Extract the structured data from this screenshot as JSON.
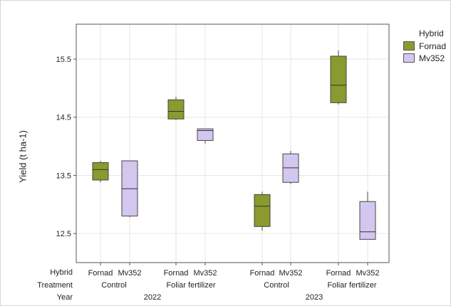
{
  "chart_data": {
    "type": "boxplot",
    "ylabel": "Yield (t ha-1)",
    "ylim": [
      12.0,
      16.1
    ],
    "yticks": [
      12.5,
      13.5,
      14.5,
      15.5
    ],
    "grid": true,
    "legend_placement": "top-right",
    "legend": {
      "title": "Hybrid",
      "entries": [
        {
          "name": "Fornad",
          "color": "#8a9a2e"
        },
        {
          "name": "Mv352",
          "color": "#d3c7f0"
        }
      ]
    },
    "row_labels": [
      "Hybrid",
      "Treatment",
      "Year"
    ],
    "years": [
      "2022",
      "2023"
    ],
    "treatments": [
      {
        "name": "Control",
        "year": "2022"
      },
      {
        "name": "Foliar fertilizer",
        "year": "2022"
      },
      {
        "name": "Control",
        "year": "2023"
      },
      {
        "name": "Foliar fertilizer",
        "year": "2023"
      }
    ],
    "boxes": [
      {
        "hybrid": "Fornad",
        "treatment": "Control",
        "year": "2022",
        "min": 13.38,
        "q1": 13.42,
        "median": 13.6,
        "q3": 13.72,
        "max": 13.75
      },
      {
        "hybrid": "Mv352",
        "treatment": "Control",
        "year": "2022",
        "min": 12.78,
        "q1": 12.8,
        "median": 13.27,
        "q3": 13.75,
        "max": 13.75
      },
      {
        "hybrid": "Fornad",
        "treatment": "Foliar fertilizer",
        "year": "2022",
        "min": 14.45,
        "q1": 14.47,
        "median": 14.6,
        "q3": 14.8,
        "max": 14.85
      },
      {
        "hybrid": "Mv352",
        "treatment": "Foliar fertilizer",
        "year": "2022",
        "min": 14.05,
        "q1": 14.1,
        "median": 14.27,
        "q3": 14.3,
        "max": 14.3
      },
      {
        "hybrid": "Fornad",
        "treatment": "Control",
        "year": "2023",
        "min": 12.55,
        "q1": 12.62,
        "median": 12.97,
        "q3": 13.17,
        "max": 13.22
      },
      {
        "hybrid": "Mv352",
        "treatment": "Control",
        "year": "2023",
        "min": 13.35,
        "q1": 13.38,
        "median": 13.63,
        "q3": 13.87,
        "max": 13.92
      },
      {
        "hybrid": "Fornad",
        "treatment": "Foliar fertilizer",
        "year": "2023",
        "min": 14.72,
        "q1": 14.75,
        "median": 15.05,
        "q3": 15.55,
        "max": 15.65
      },
      {
        "hybrid": "Mv352",
        "treatment": "Foliar fertilizer",
        "year": "2023",
        "min": 12.4,
        "q1": 12.4,
        "median": 12.53,
        "q3": 13.05,
        "max": 13.22
      }
    ]
  }
}
